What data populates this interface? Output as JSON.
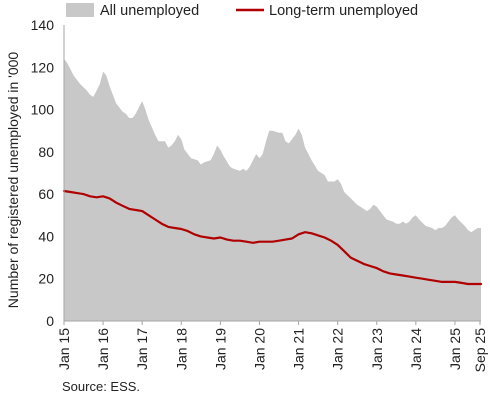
{
  "chart_data": {
    "type": "area",
    "ylabel": "Number of registered unemployed in '000",
    "xlabel": "",
    "ylim": [
      0,
      140
    ],
    "y_ticks": [
      0,
      20,
      40,
      60,
      80,
      100,
      120,
      140
    ],
    "x_tick_labels": [
      "Jan 15",
      "Jan 16",
      "Jan 17",
      "Jan 18",
      "Jan 19",
      "Jan 20",
      "Jan 21",
      "Jan 22",
      "Jan 23",
      "Jan 24",
      "Jan 25",
      "Sep 25"
    ],
    "x_range": [
      "2015-01",
      "2025-09"
    ],
    "grid": "none",
    "legend_position": "top",
    "source": "Source: ESS.",
    "series": [
      {
        "name": "All unemployed",
        "style": "area",
        "color": "#c8c8c8",
        "points": [
          [
            "2015-01",
            124
          ],
          [
            "2015-02",
            122
          ],
          [
            "2015-04",
            116
          ],
          [
            "2015-06",
            112
          ],
          [
            "2015-08",
            109
          ],
          [
            "2015-09",
            107
          ],
          [
            "2015-10",
            106
          ],
          [
            "2015-11",
            109
          ],
          [
            "2015-12",
            112
          ],
          [
            "2016-01",
            118
          ],
          [
            "2016-02",
            116
          ],
          [
            "2016-03",
            111
          ],
          [
            "2016-05",
            103
          ],
          [
            "2016-07",
            99
          ],
          [
            "2016-08",
            98
          ],
          [
            "2016-09",
            96
          ],
          [
            "2016-10",
            96
          ],
          [
            "2016-11",
            98
          ],
          [
            "2016-12",
            101
          ],
          [
            "2017-01",
            104
          ],
          [
            "2017-02",
            100
          ],
          [
            "2017-03",
            95
          ],
          [
            "2017-05",
            88
          ],
          [
            "2017-06",
            85
          ],
          [
            "2017-08",
            85
          ],
          [
            "2017-09",
            82
          ],
          [
            "2017-10",
            83
          ],
          [
            "2017-11",
            85
          ],
          [
            "2017-12",
            88
          ],
          [
            "2018-01",
            86
          ],
          [
            "2018-02",
            81
          ],
          [
            "2018-04",
            77
          ],
          [
            "2018-06",
            76
          ],
          [
            "2018-07",
            74
          ],
          [
            "2018-08",
            75
          ],
          [
            "2018-10",
            76
          ],
          [
            "2018-11",
            79
          ],
          [
            "2018-12",
            83
          ],
          [
            "2019-01",
            81
          ],
          [
            "2019-02",
            78
          ],
          [
            "2019-04",
            73
          ],
          [
            "2019-05",
            72
          ],
          [
            "2019-07",
            71
          ],
          [
            "2019-08",
            72
          ],
          [
            "2019-09",
            71
          ],
          [
            "2019-10",
            73
          ],
          [
            "2019-11",
            76
          ],
          [
            "2019-12",
            79
          ],
          [
            "2020-01",
            77
          ],
          [
            "2020-02",
            79
          ],
          [
            "2020-03",
            85
          ],
          [
            "2020-04",
            90
          ],
          [
            "2020-05",
            90
          ],
          [
            "2020-07",
            89
          ],
          [
            "2020-08",
            89
          ],
          [
            "2020-09",
            85
          ],
          [
            "2020-10",
            84
          ],
          [
            "2020-11",
            86
          ],
          [
            "2020-12",
            88
          ],
          [
            "2021-01",
            91
          ],
          [
            "2021-02",
            88
          ],
          [
            "2021-03",
            82
          ],
          [
            "2021-05",
            76
          ],
          [
            "2021-07",
            71
          ],
          [
            "2021-09",
            69
          ],
          [
            "2021-10",
            66
          ],
          [
            "2021-12",
            66
          ],
          [
            "2022-01",
            67
          ],
          [
            "2022-02",
            65
          ],
          [
            "2022-03",
            61
          ],
          [
            "2022-05",
            58
          ],
          [
            "2022-07",
            55
          ],
          [
            "2022-08",
            54
          ],
          [
            "2022-09",
            53
          ],
          [
            "2022-10",
            52
          ],
          [
            "2022-11",
            53
          ],
          [
            "2022-12",
            55
          ],
          [
            "2023-01",
            54
          ],
          [
            "2023-02",
            52
          ],
          [
            "2023-04",
            48
          ],
          [
            "2023-06",
            47
          ],
          [
            "2023-07",
            46
          ],
          [
            "2023-08",
            46
          ],
          [
            "2023-09",
            47
          ],
          [
            "2023-10",
            46
          ],
          [
            "2023-11",
            47
          ],
          [
            "2023-12",
            49
          ],
          [
            "2024-01",
            50
          ],
          [
            "2024-02",
            48
          ],
          [
            "2024-04",
            45
          ],
          [
            "2024-06",
            44
          ],
          [
            "2024-07",
            43
          ],
          [
            "2024-08",
            44
          ],
          [
            "2024-09",
            44
          ],
          [
            "2024-10",
            45
          ],
          [
            "2024-11",
            47
          ],
          [
            "2024-12",
            49
          ],
          [
            "2025-01",
            50
          ],
          [
            "2025-02",
            48
          ],
          [
            "2025-04",
            45
          ],
          [
            "2025-05",
            43
          ],
          [
            "2025-06",
            42
          ],
          [
            "2025-07",
            43
          ],
          [
            "2025-08",
            44
          ],
          [
            "2025-09",
            44
          ]
        ]
      },
      {
        "name": "Long-term unemployed",
        "style": "line",
        "color": "#b00000",
        "points": [
          [
            "2015-01",
            61.5
          ],
          [
            "2015-03",
            61
          ],
          [
            "2015-05",
            60.5
          ],
          [
            "2015-07",
            60
          ],
          [
            "2015-09",
            59
          ],
          [
            "2015-11",
            58.5
          ],
          [
            "2016-01",
            59
          ],
          [
            "2016-03",
            58
          ],
          [
            "2016-05",
            56
          ],
          [
            "2016-07",
            54.5
          ],
          [
            "2016-09",
            53
          ],
          [
            "2016-11",
            52.5
          ],
          [
            "2017-01",
            52
          ],
          [
            "2017-03",
            50
          ],
          [
            "2017-05",
            48
          ],
          [
            "2017-07",
            46
          ],
          [
            "2017-09",
            44.5
          ],
          [
            "2017-11",
            44
          ],
          [
            "2018-01",
            43.5
          ],
          [
            "2018-03",
            42.5
          ],
          [
            "2018-05",
            41
          ],
          [
            "2018-07",
            40
          ],
          [
            "2018-09",
            39.5
          ],
          [
            "2018-11",
            39
          ],
          [
            "2019-01",
            39.5
          ],
          [
            "2019-03",
            38.5
          ],
          [
            "2019-05",
            38
          ],
          [
            "2019-07",
            38
          ],
          [
            "2019-09",
            37.5
          ],
          [
            "2019-11",
            37
          ],
          [
            "2020-01",
            37.5
          ],
          [
            "2020-03",
            37.5
          ],
          [
            "2020-05",
            37.5
          ],
          [
            "2020-07",
            38
          ],
          [
            "2020-09",
            38.5
          ],
          [
            "2020-11",
            39
          ],
          [
            "2021-01",
            41
          ],
          [
            "2021-03",
            42
          ],
          [
            "2021-05",
            41.5
          ],
          [
            "2021-07",
            40.5
          ],
          [
            "2021-09",
            39.5
          ],
          [
            "2021-11",
            38
          ],
          [
            "2022-01",
            36
          ],
          [
            "2022-03",
            33
          ],
          [
            "2022-05",
            30
          ],
          [
            "2022-07",
            28.5
          ],
          [
            "2022-09",
            27
          ],
          [
            "2022-11",
            26
          ],
          [
            "2023-01",
            25
          ],
          [
            "2023-03",
            23.5
          ],
          [
            "2023-05",
            22.5
          ],
          [
            "2023-07",
            22
          ],
          [
            "2023-09",
            21.5
          ],
          [
            "2023-11",
            21
          ],
          [
            "2024-01",
            20.5
          ],
          [
            "2024-03",
            20
          ],
          [
            "2024-05",
            19.5
          ],
          [
            "2024-07",
            19
          ],
          [
            "2024-09",
            18.5
          ],
          [
            "2024-11",
            18.5
          ],
          [
            "2025-01",
            18.5
          ],
          [
            "2025-03",
            18
          ],
          [
            "2025-05",
            17.5
          ],
          [
            "2025-07",
            17.5
          ],
          [
            "2025-09",
            17.5
          ]
        ]
      }
    ]
  }
}
